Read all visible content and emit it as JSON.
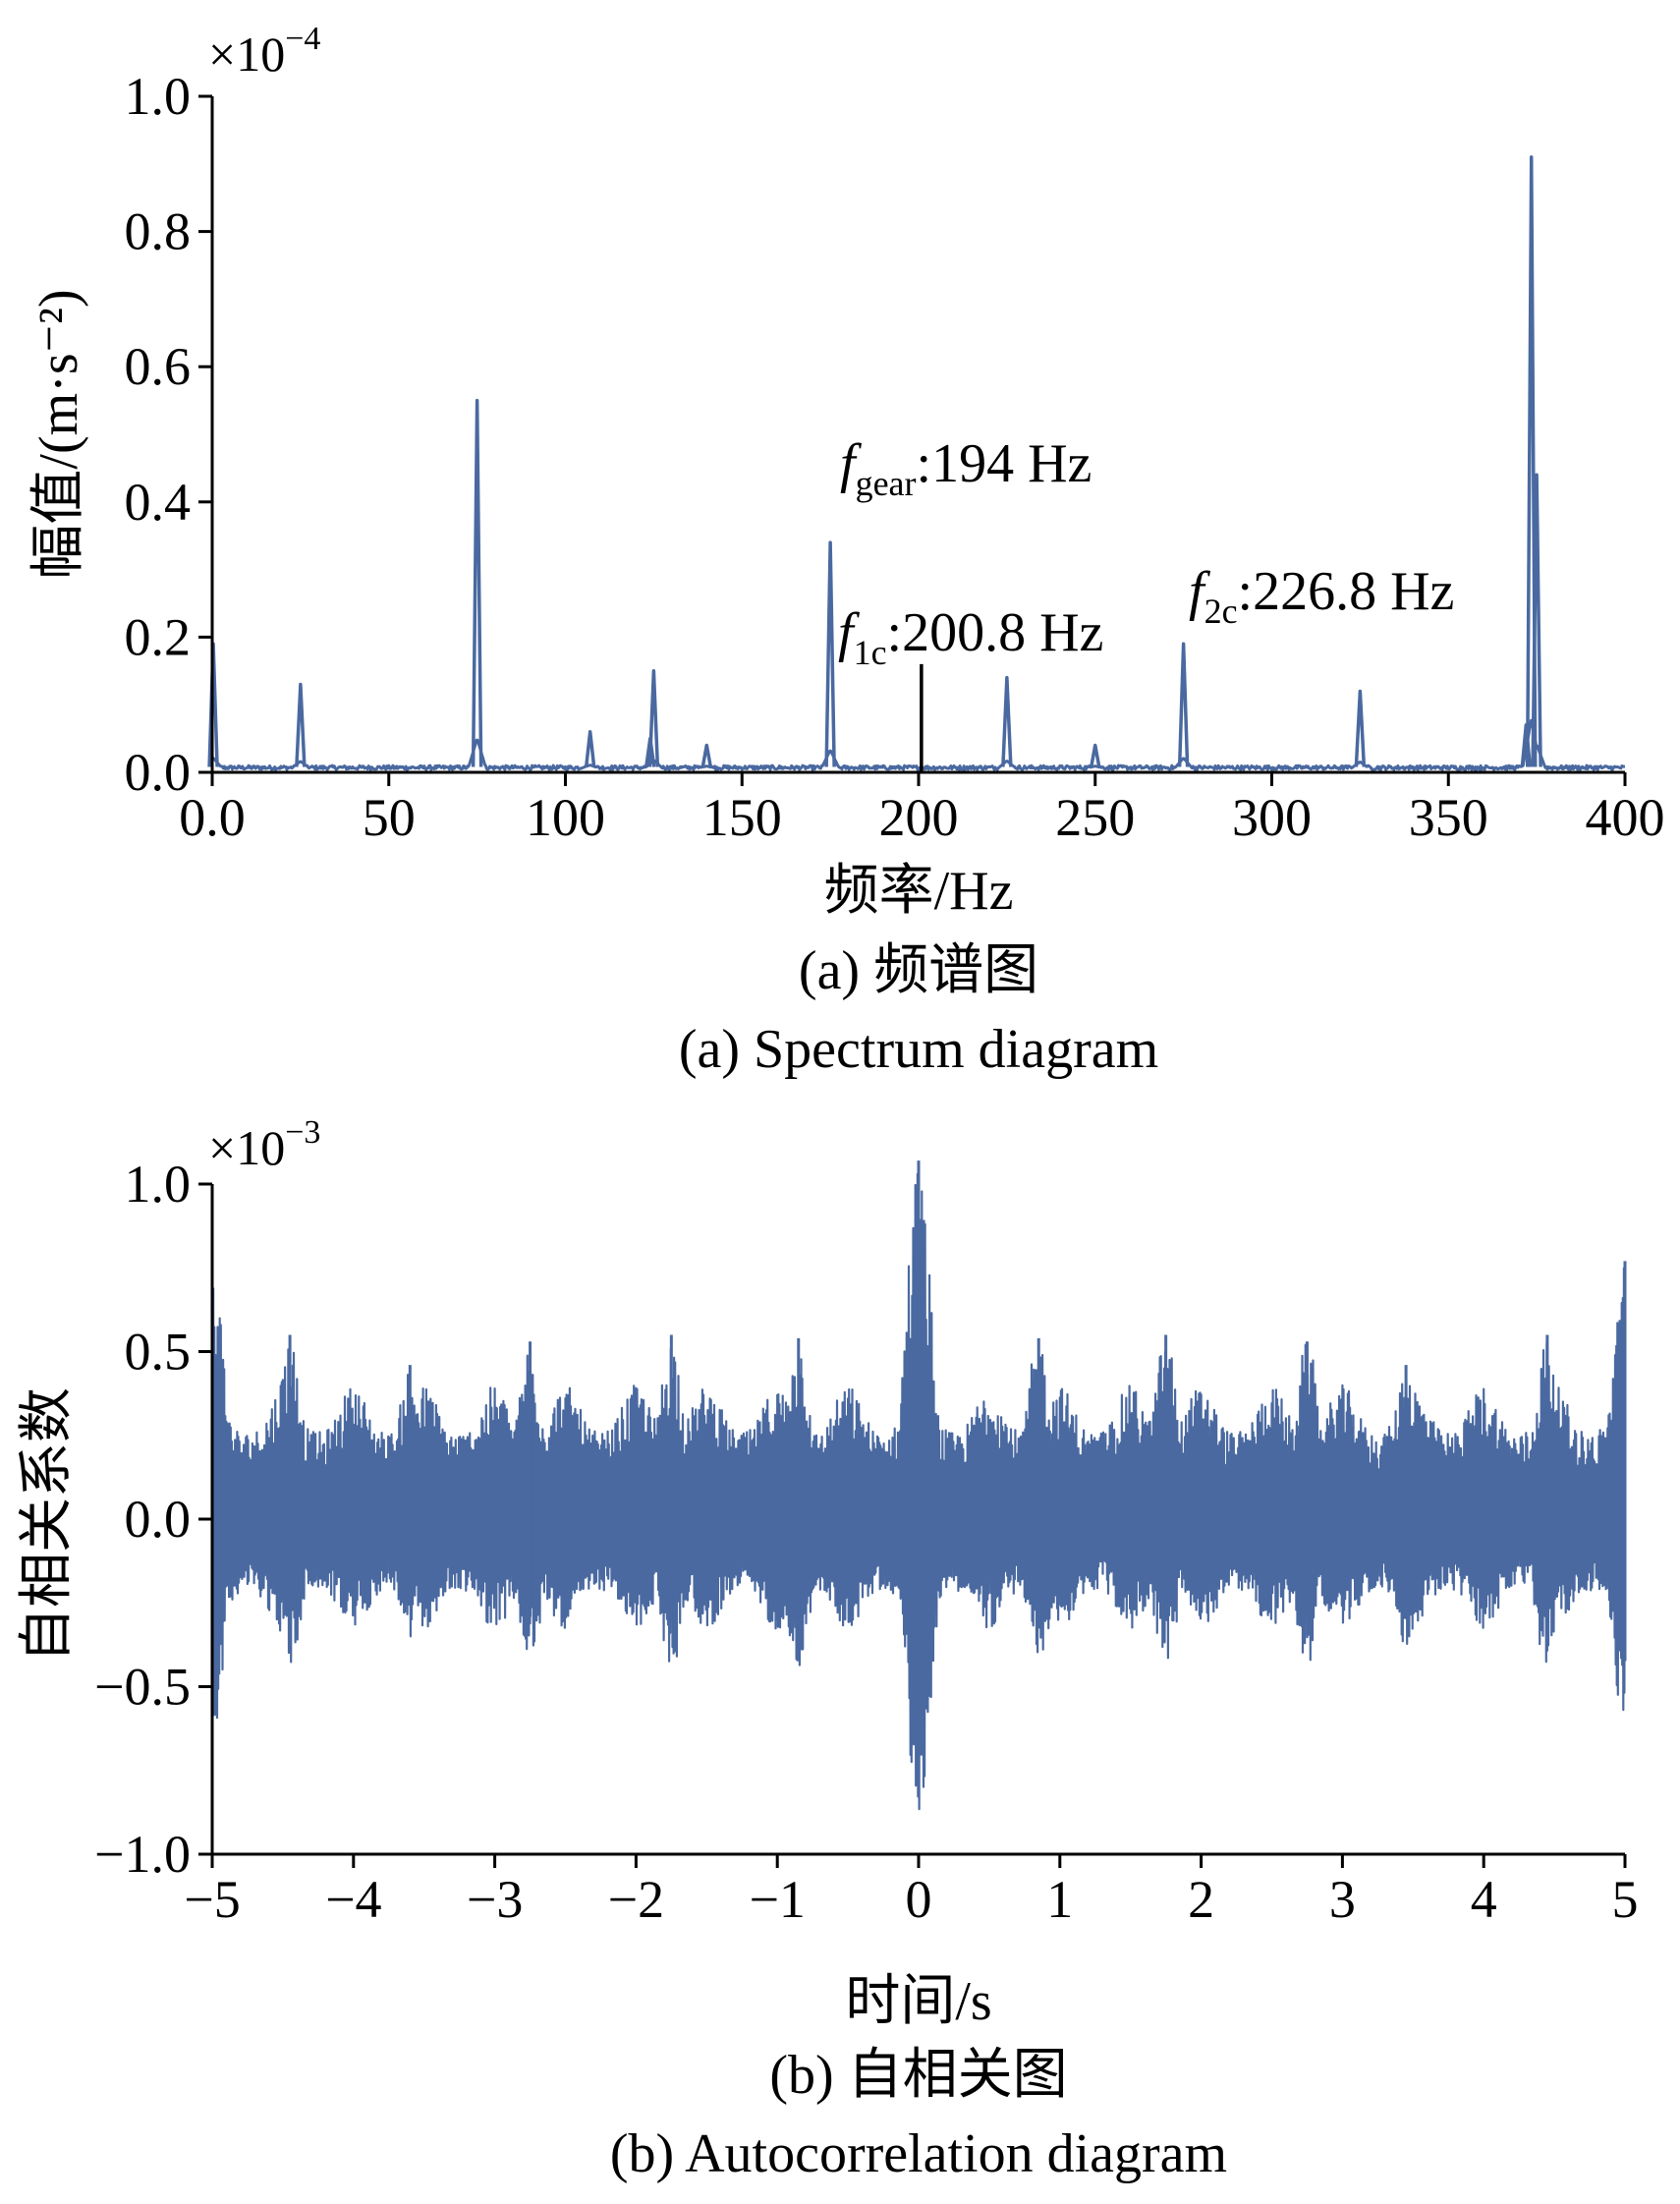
{
  "colors": {
    "series": "#4a69a0",
    "marker": "#000000",
    "axis": "#000000"
  },
  "chart_data": [
    {
      "type": "line",
      "panel": "a",
      "caption_cn": "(a) 频谱图",
      "caption_en": "(a) Spectrum diagram",
      "xlabel": "频率/Hz",
      "ylabel": "幅值/(m·s⁻²)",
      "y_multiplier": {
        "base": "×10",
        "exp": "−4"
      },
      "xlim": [
        0,
        400
      ],
      "ylim": [
        0,
        1.0
      ],
      "xticks": [
        0,
        50,
        100,
        150,
        200,
        250,
        300,
        350,
        400
      ],
      "xtick_labels": [
        "0.0",
        "50",
        "100",
        "150",
        "200",
        "250",
        "300",
        "350",
        "400"
      ],
      "yticks": [
        0,
        0.2,
        0.4,
        0.6,
        0.8,
        1.0
      ],
      "ytick_labels": [
        "0.0",
        "0.2",
        "0.4",
        "0.6",
        "0.8",
        "1.0"
      ],
      "grid": false,
      "peaks": [
        {
          "x": 0.3,
          "y": 0.19
        },
        {
          "x": 25,
          "y": 0.13
        },
        {
          "x": 75,
          "y": 0.55
        },
        {
          "x": 107,
          "y": 0.06
        },
        {
          "x": 124,
          "y": 0.05
        },
        {
          "x": 125,
          "y": 0.15
        },
        {
          "x": 140,
          "y": 0.04
        },
        {
          "x": 175,
          "y": 0.34
        },
        {
          "x": 225,
          "y": 0.14
        },
        {
          "x": 250,
          "y": 0.04
        },
        {
          "x": 275,
          "y": 0.19
        },
        {
          "x": 325,
          "y": 0.12
        },
        {
          "x": 372,
          "y": 0.07
        },
        {
          "x": 373.5,
          "y": 0.91
        },
        {
          "x": 375,
          "y": 0.44
        }
      ],
      "markers": [
        {
          "x": 200.8,
          "y": 0.16
        }
      ],
      "annotations": [
        {
          "main": "f",
          "sub": "gear",
          "rest": ":194 Hz",
          "x": 178,
          "y": 0.43
        },
        {
          "main": "f",
          "sub": "1c",
          "rest": ":200.8 Hz",
          "x": 176,
          "y": 0.2
        },
        {
          "main": "f",
          "sub": "2c",
          "rest": ":226.8 Hz",
          "x": 278,
          "y": 0.25
        }
      ]
    },
    {
      "type": "line",
      "panel": "b",
      "caption_cn": "(b) 自相关图",
      "caption_en": "(b) Autocorrelation diagram",
      "xlabel": "时间/s",
      "ylabel": "自相关系数",
      "y_multiplier": {
        "base": "×10",
        "exp": "−3"
      },
      "xlim": [
        -5,
        5
      ],
      "ylim": [
        -1.0,
        1.0
      ],
      "xticks": [
        -5,
        -4,
        -3,
        -2,
        -1,
        0,
        1,
        2,
        3,
        4,
        5
      ],
      "xtick_labels": [
        "−5",
        "−4",
        "−3",
        "−2",
        "−1",
        "0",
        "1",
        "2",
        "3",
        "4",
        "5"
      ],
      "yticks": [
        -1.0,
        -0.5,
        0.0,
        0.5,
        1.0
      ],
      "ytick_labels": [
        "−1.0",
        "−0.5",
        "0.0",
        "0.5",
        "1.0"
      ],
      "grid": false,
      "envelope_beat_period_s": 0.5,
      "envelope_peaks": [
        {
          "x": -5.0,
          "y": 0.78
        },
        {
          "x": -4.45,
          "y": 0.55
        },
        {
          "x": -3.6,
          "y": 0.46
        },
        {
          "x": -2.75,
          "y": 0.53
        },
        {
          "x": -1.75,
          "y": 0.55
        },
        {
          "x": -0.85,
          "y": 0.54
        },
        {
          "x": 0.0,
          "y": 1.07
        },
        {
          "x": 0.85,
          "y": 0.54
        },
        {
          "x": 1.75,
          "y": 0.55
        },
        {
          "x": 2.75,
          "y": 0.53
        },
        {
          "x": 3.45,
          "y": 0.46
        },
        {
          "x": 4.45,
          "y": 0.55
        },
        {
          "x": 5.0,
          "y": 0.77
        }
      ]
    }
  ]
}
